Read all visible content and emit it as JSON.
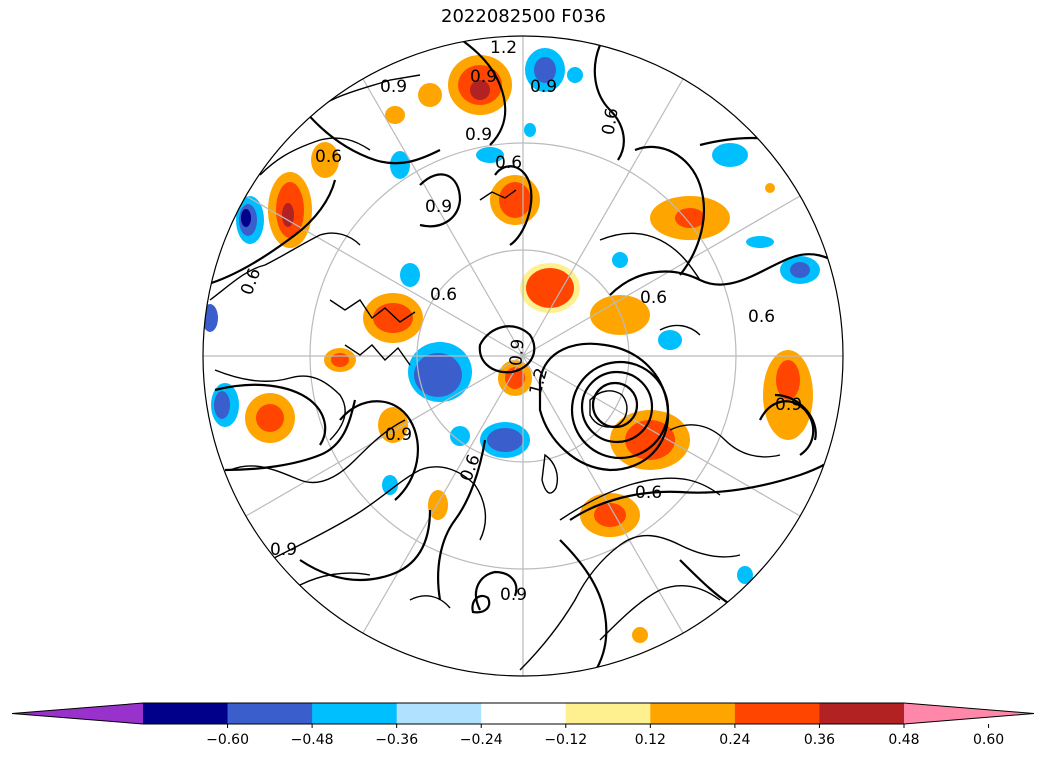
{
  "title": "2022082500 F036",
  "map": {
    "projection": "north-polar-stereographic",
    "contour_labels": [
      "1.2",
      "0.9",
      "0.9",
      "0.9",
      "0.6",
      "0.9",
      "0.6",
      "0.6",
      "0.9",
      "0.6",
      "0.6",
      "0.6",
      "1.2",
      "0.9",
      "0.6",
      "0.9",
      "0.6",
      "0.9",
      "0.9",
      "0.6",
      "0.9"
    ]
  },
  "colorbar": {
    "extend": "both",
    "colors": [
      "#9932cc",
      "#00008b",
      "#3a5fcd",
      "#00bfff",
      "#b0e2ff",
      "#ffffff",
      "#fff08f",
      "#ffa500",
      "#ff4500",
      "#b22222",
      "#ff88aa"
    ],
    "tick_labels": [
      "−0.60",
      "−0.48",
      "−0.36",
      "−0.24",
      "−0.12",
      "0.12",
      "0.24",
      "0.36",
      "0.48",
      "0.60"
    ]
  },
  "colors": {
    "pos_light": "#fff08f",
    "pos_mid": "#ffa500",
    "pos_strong": "#ff4500",
    "pos_max": "#b22222",
    "neg_light": "#b0e2ff",
    "neg_mid": "#00bfff",
    "neg_strong": "#3a5fcd",
    "neg_max": "#00008b",
    "grid": "#bbbbbb",
    "contour": "#000000"
  }
}
